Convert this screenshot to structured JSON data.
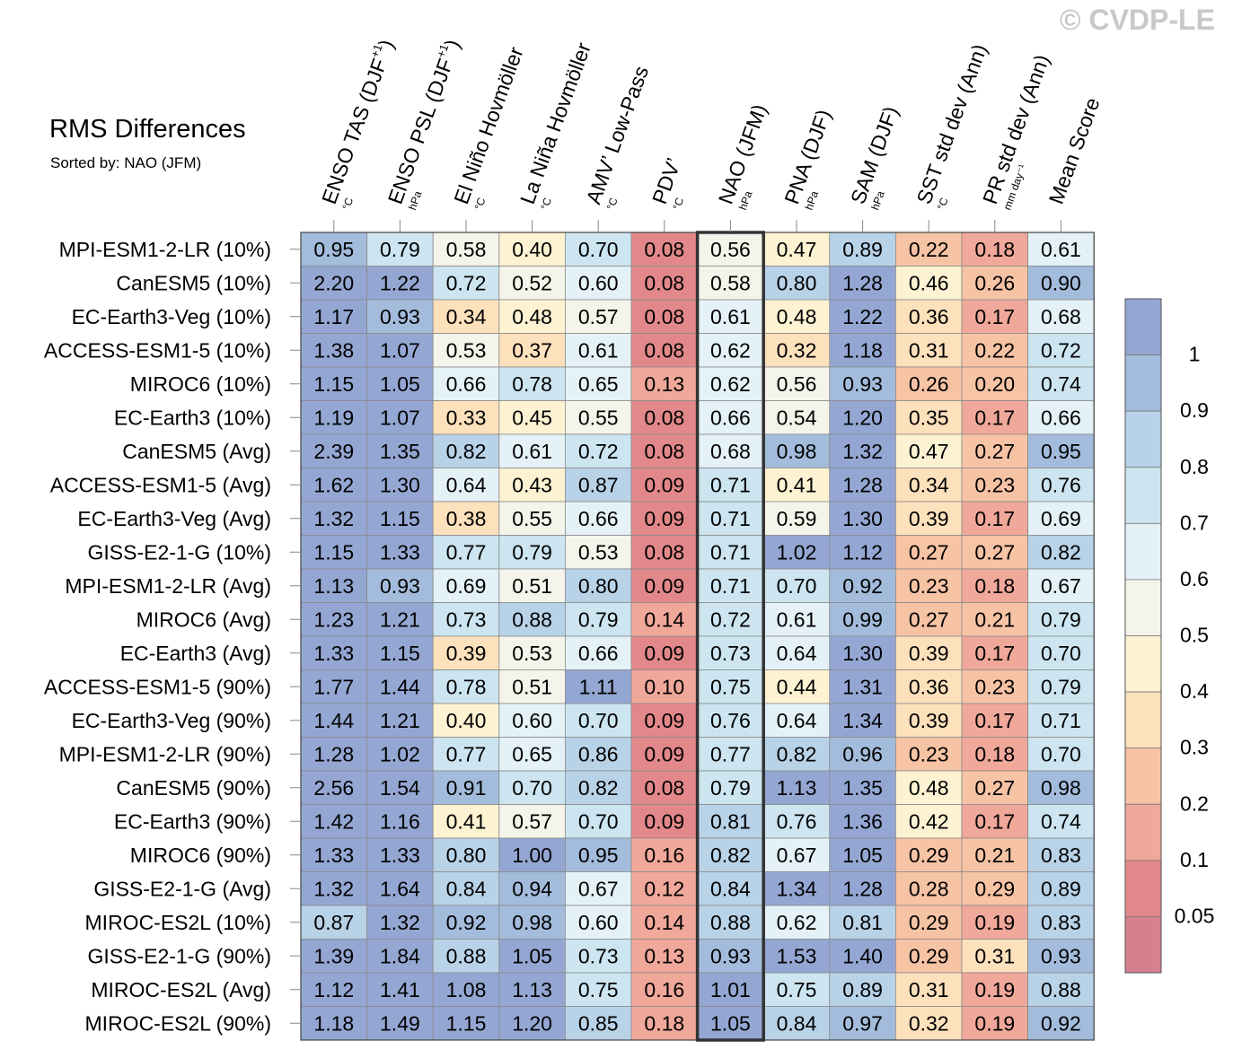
{
  "watermark": "© CVDP-LE",
  "chart_data": {
    "type": "heatmap",
    "title": "RMS Differences",
    "subtitle": "Sorted by: NAO (JFM)",
    "sorted_by_column": "NAO (JFM)",
    "columns": [
      {
        "label": "ENSO TAS (DJF",
        "sup": "+1",
        "close": ")",
        "unit": "°C"
      },
      {
        "label": "ENSO PSL (DJF",
        "sup": "+1",
        "close": ")",
        "unit": "hPa"
      },
      {
        "label": "El Niño Hovmöller",
        "sup": "",
        "close": "",
        "unit": "°C"
      },
      {
        "label": "La Niña Hovmöller",
        "sup": "",
        "close": "",
        "unit": "°C"
      },
      {
        "label": "AMV’ Low-Pass",
        "sup": "",
        "close": "",
        "unit": "°C"
      },
      {
        "label": "PDV’",
        "sup": "",
        "close": "",
        "unit": "°C"
      },
      {
        "label": "NAO (JFM)",
        "sup": "",
        "close": "",
        "unit": "hPa"
      },
      {
        "label": "PNA (DJF)",
        "sup": "",
        "close": "",
        "unit": "hPa"
      },
      {
        "label": "SAM (DJF)",
        "sup": "",
        "close": "",
        "unit": "hPa"
      },
      {
        "label": "SST std dev (Ann)",
        "sup": "",
        "close": "",
        "unit": "°C"
      },
      {
        "label": "PR std dev (Ann)",
        "sup": "",
        "close": "",
        "unit": "mm day⁻¹"
      },
      {
        "label": "Mean Score",
        "sup": "",
        "close": "",
        "unit": ""
      }
    ],
    "rows": [
      "MPI-ESM1-2-LR (10%)",
      "CanESM5 (10%)",
      "EC-Earth3-Veg (10%)",
      "ACCESS-ESM1-5 (10%)",
      "MIROC6 (10%)",
      "EC-Earth3 (10%)",
      "CanESM5 (Avg)",
      "ACCESS-ESM1-5 (Avg)",
      "EC-Earth3-Veg (Avg)",
      "GISS-E2-1-G (10%)",
      "MPI-ESM1-2-LR (Avg)",
      "MIROC6 (Avg)",
      "EC-Earth3 (Avg)",
      "ACCESS-ESM1-5 (90%)",
      "EC-Earth3-Veg (90%)",
      "MPI-ESM1-2-LR (90%)",
      "CanESM5 (90%)",
      "EC-Earth3 (90%)",
      "MIROC6 (90%)",
      "GISS-E2-1-G (Avg)",
      "MIROC-ES2L (10%)",
      "GISS-E2-1-G (90%)",
      "MIROC-ES2L (Avg)",
      "MIROC-ES2L (90%)"
    ],
    "values": [
      [
        "0.95",
        "0.79",
        "0.58",
        "0.40",
        "0.70",
        "0.08",
        "0.56",
        "0.47",
        "0.89",
        "0.22",
        "0.18",
        "0.61"
      ],
      [
        "2.20",
        "1.22",
        "0.72",
        "0.52",
        "0.60",
        "0.08",
        "0.58",
        "0.80",
        "1.28",
        "0.46",
        "0.26",
        "0.90"
      ],
      [
        "1.17",
        "0.93",
        "0.34",
        "0.48",
        "0.57",
        "0.08",
        "0.61",
        "0.48",
        "1.22",
        "0.36",
        "0.17",
        "0.68"
      ],
      [
        "1.38",
        "1.07",
        "0.53",
        "0.37",
        "0.61",
        "0.08",
        "0.62",
        "0.32",
        "1.18",
        "0.31",
        "0.22",
        "0.72"
      ],
      [
        "1.15",
        "1.05",
        "0.66",
        "0.78",
        "0.65",
        "0.13",
        "0.62",
        "0.56",
        "0.93",
        "0.26",
        "0.20",
        "0.74"
      ],
      [
        "1.19",
        "1.07",
        "0.33",
        "0.45",
        "0.55",
        "0.08",
        "0.66",
        "0.54",
        "1.20",
        "0.35",
        "0.17",
        "0.66"
      ],
      [
        "2.39",
        "1.35",
        "0.82",
        "0.61",
        "0.72",
        "0.08",
        "0.68",
        "0.98",
        "1.32",
        "0.47",
        "0.27",
        "0.95"
      ],
      [
        "1.62",
        "1.30",
        "0.64",
        "0.43",
        "0.87",
        "0.09",
        "0.71",
        "0.41",
        "1.28",
        "0.34",
        "0.23",
        "0.76"
      ],
      [
        "1.32",
        "1.15",
        "0.38",
        "0.55",
        "0.66",
        "0.09",
        "0.71",
        "0.59",
        "1.30",
        "0.39",
        "0.17",
        "0.69"
      ],
      [
        "1.15",
        "1.33",
        "0.77",
        "0.79",
        "0.53",
        "0.08",
        "0.71",
        "1.02",
        "1.12",
        "0.27",
        "0.27",
        "0.82"
      ],
      [
        "1.13",
        "0.93",
        "0.69",
        "0.51",
        "0.80",
        "0.09",
        "0.71",
        "0.70",
        "0.92",
        "0.23",
        "0.18",
        "0.67"
      ],
      [
        "1.23",
        "1.21",
        "0.73",
        "0.88",
        "0.79",
        "0.14",
        "0.72",
        "0.61",
        "0.99",
        "0.27",
        "0.21",
        "0.79"
      ],
      [
        "1.33",
        "1.15",
        "0.39",
        "0.53",
        "0.66",
        "0.09",
        "0.73",
        "0.64",
        "1.30",
        "0.39",
        "0.17",
        "0.70"
      ],
      [
        "1.77",
        "1.44",
        "0.78",
        "0.51",
        "1.11",
        "0.10",
        "0.75",
        "0.44",
        "1.31",
        "0.36",
        "0.23",
        "0.79"
      ],
      [
        "1.44",
        "1.21",
        "0.40",
        "0.60",
        "0.70",
        "0.09",
        "0.76",
        "0.64",
        "1.34",
        "0.39",
        "0.17",
        "0.71"
      ],
      [
        "1.28",
        "1.02",
        "0.77",
        "0.65",
        "0.86",
        "0.09",
        "0.77",
        "0.82",
        "0.96",
        "0.23",
        "0.18",
        "0.70"
      ],
      [
        "2.56",
        "1.54",
        "0.91",
        "0.70",
        "0.82",
        "0.08",
        "0.79",
        "1.13",
        "1.35",
        "0.48",
        "0.27",
        "0.98"
      ],
      [
        "1.42",
        "1.16",
        "0.41",
        "0.57",
        "0.70",
        "0.09",
        "0.81",
        "0.76",
        "1.36",
        "0.42",
        "0.17",
        "0.74"
      ],
      [
        "1.33",
        "1.33",
        "0.80",
        "1.00",
        "0.95",
        "0.16",
        "0.82",
        "0.67",
        "1.05",
        "0.29",
        "0.21",
        "0.83"
      ],
      [
        "1.32",
        "1.64",
        "0.84",
        "0.94",
        "0.67",
        "0.12",
        "0.84",
        "1.34",
        "1.28",
        "0.28",
        "0.29",
        "0.89"
      ],
      [
        "0.87",
        "1.32",
        "0.92",
        "0.98",
        "0.60",
        "0.14",
        "0.88",
        "0.62",
        "0.81",
        "0.29",
        "0.19",
        "0.83"
      ],
      [
        "1.39",
        "1.84",
        "0.88",
        "1.05",
        "0.73",
        "0.13",
        "0.93",
        "1.53",
        "1.40",
        "0.29",
        "0.31",
        "0.93"
      ],
      [
        "1.12",
        "1.41",
        "1.08",
        "1.13",
        "0.75",
        "0.16",
        "1.01",
        "0.75",
        "0.89",
        "0.31",
        "0.19",
        "0.88"
      ],
      [
        "1.18",
        "1.49",
        "1.15",
        "1.20",
        "0.85",
        "0.18",
        "1.05",
        "0.84",
        "0.97",
        "0.32",
        "0.19",
        "0.92"
      ]
    ],
    "colorbar": {
      "labels": [
        "1",
        "0.9",
        "0.8",
        "0.7",
        "0.6",
        "0.5",
        "0.4",
        "0.3",
        "0.2",
        "0.1",
        "0.05"
      ],
      "levels": [
        0.05,
        0.1,
        0.2,
        0.3,
        0.4,
        0.5,
        0.6,
        0.7,
        0.8,
        0.9,
        1.0
      ],
      "colors": [
        "#d4808f",
        "#e2888a",
        "#f0a89a",
        "#f7c3a5",
        "#fde0bc",
        "#fdf2d2",
        "#f4f4ea",
        "#e4f1f7",
        "#cce5f0",
        "#b8d2e8",
        "#a3bcdc",
        "#94a7d3"
      ]
    }
  }
}
